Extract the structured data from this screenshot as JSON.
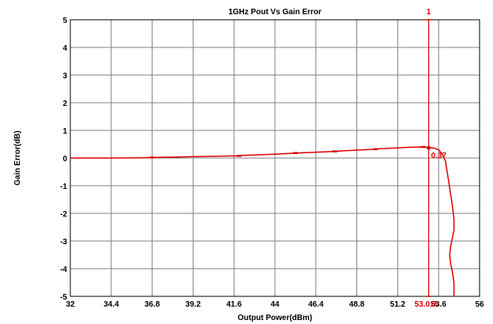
{
  "chart_data": {
    "type": "line",
    "title": "1GHz Pout Vs Gain Error",
    "xlabel": "Output Power(dBm)",
    "ylabel": "Gain Error(dB)",
    "xlim": [
      32,
      56
    ],
    "ylim": [
      -5,
      5
    ],
    "x_ticks": [
      32,
      34.4,
      36.8,
      39.2,
      41.6,
      44,
      46.4,
      48.8,
      51.2,
      53.6,
      56
    ],
    "x_tick_labels": [
      "32",
      "34.4",
      "36.8",
      "39.2",
      "41.6",
      "44",
      "46.4",
      "48.8",
      "51.2",
      "53.6",
      "56"
    ],
    "y_ticks": [
      5,
      4,
      3,
      2,
      1,
      0,
      -1,
      -2,
      -3,
      -4,
      -5
    ],
    "y_tick_labels": [
      "5",
      "4",
      "3",
      "2",
      "1",
      "0",
      "-1",
      "-2",
      "-3",
      "-4",
      "-5"
    ],
    "grid": true,
    "series_color": "#dd0000",
    "grid_color": "#808080",
    "series": [
      {
        "x": [
          32,
          34,
          36,
          36.8,
          38,
          40,
          41.9,
          42,
          44,
          45.2,
          46,
          47.5,
          48,
          49.9,
          50,
          52,
          52.7,
          53.0,
          53.2,
          53.4,
          53.6,
          53.8,
          54.0,
          54.1,
          54.2,
          54.3,
          54.4,
          54.5,
          54.5,
          54.4,
          54.3,
          54.25,
          54.3,
          54.4,
          54.5,
          54.5
        ],
        "y": [
          0.0,
          0.0,
          0.01,
          0.02,
          0.03,
          0.06,
          0.08,
          0.09,
          0.14,
          0.18,
          0.2,
          0.24,
          0.26,
          0.32,
          0.33,
          0.39,
          0.4,
          0.38,
          0.37,
          0.35,
          0.3,
          0.15,
          -0.1,
          -0.5,
          -0.9,
          -1.3,
          -1.7,
          -2.2,
          -2.6,
          -2.9,
          -3.2,
          -3.5,
          -3.8,
          -4.1,
          -4.5,
          -5.0
        ]
      }
    ],
    "direction_markers": [
      {
        "x": 36.8,
        "y": 0.02
      },
      {
        "x": 41.9,
        "y": 0.08
      },
      {
        "x": 45.2,
        "y": 0.18
      },
      {
        "x": 47.5,
        "y": 0.24
      },
      {
        "x": 49.9,
        "y": 0.32
      },
      {
        "x": 52.7,
        "y": 0.4
      }
    ],
    "marker": {
      "id": "1",
      "x": 53.015,
      "y": 0.37,
      "x_label": "53.015",
      "y_label": "0.37"
    }
  }
}
